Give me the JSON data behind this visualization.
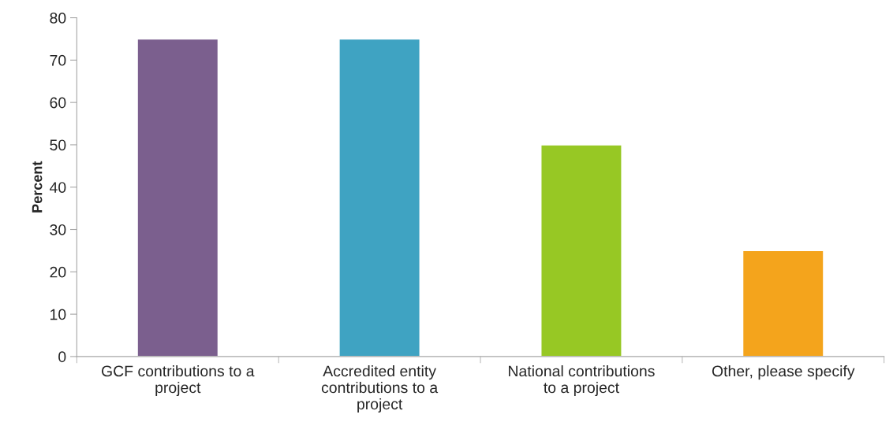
{
  "chart_data": {
    "type": "bar",
    "ylabel": "Percent",
    "categories": [
      "GCF contributions to a project",
      "Accredited entity contributions to a project",
      "National contributions to a project",
      "Other, please specify"
    ],
    "values": [
      75,
      75,
      50,
      25
    ],
    "colors": [
      "#7b5f8e",
      "#3fa3c2",
      "#97c824",
      "#f4a41c"
    ],
    "ylim": [
      0,
      80
    ],
    "yticks": [
      0,
      10,
      20,
      30,
      40,
      50,
      60,
      70,
      80
    ],
    "grid": false,
    "legend": false
  }
}
